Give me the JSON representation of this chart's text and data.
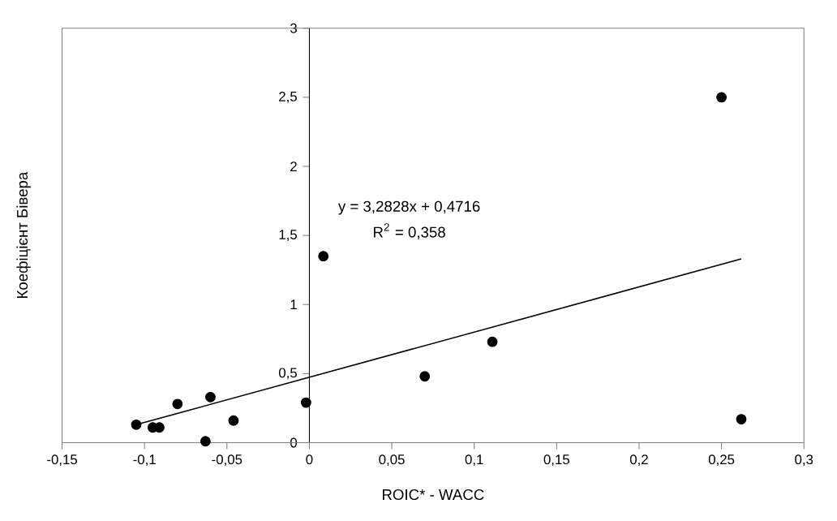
{
  "chart_data": {
    "type": "scatter",
    "xlabel": "ROIC* - WACC",
    "ylabel": "Коефіцієнт Бівера",
    "annotations": [
      "y = 3,2828x + 0,4716",
      "R$^{2}$ = 0,358"
    ],
    "xlim": [
      -0.15,
      0.3
    ],
    "ylim": [
      0,
      3
    ],
    "xticks": [
      {
        "value": -0.15,
        "label": "-0,15"
      },
      {
        "value": -0.1,
        "label": "-0,1"
      },
      {
        "value": -0.05,
        "label": "-0,05"
      },
      0,
      {
        "value": 0.05,
        "label": "0,05"
      },
      {
        "value": 0.1,
        "label": "0,1"
      },
      {
        "value": 0.15,
        "label": "0,15"
      },
      {
        "value": 0.2,
        "label": "0,2"
      },
      {
        "value": 0.25,
        "label": "0,25"
      },
      {
        "value": 0.3,
        "label": "0,3"
      }
    ],
    "yticks": [
      0,
      {
        "value": 0.5,
        "label": "0,5"
      },
      1,
      {
        "value": 1.5,
        "label": "1,5"
      },
      2,
      {
        "value": 2.5,
        "label": "2,5"
      },
      3
    ],
    "series": [
      {
        "color": "#000000",
        "marker": "circle",
        "x": [
          -0.105,
          -0.095,
          -0.091,
          -0.08,
          -0.06,
          -0.063,
          -0.046,
          -0.002,
          0.0085,
          0.07,
          0.111,
          0.25,
          0.262
        ],
        "values": [
          0.13,
          0.11,
          0.11,
          0.28,
          0.33,
          0.01,
          0.16,
          0.29,
          1.35,
          0.48,
          0.73,
          2.5,
          0.17
        ]
      },
      {
        "type": "line",
        "color": "#000000",
        "marker": "none",
        "line_style": "solid",
        "x": [
          -0.105,
          0.262
        ],
        "values": [
          0.13,
          1.33
        ]
      }
    ]
  }
}
